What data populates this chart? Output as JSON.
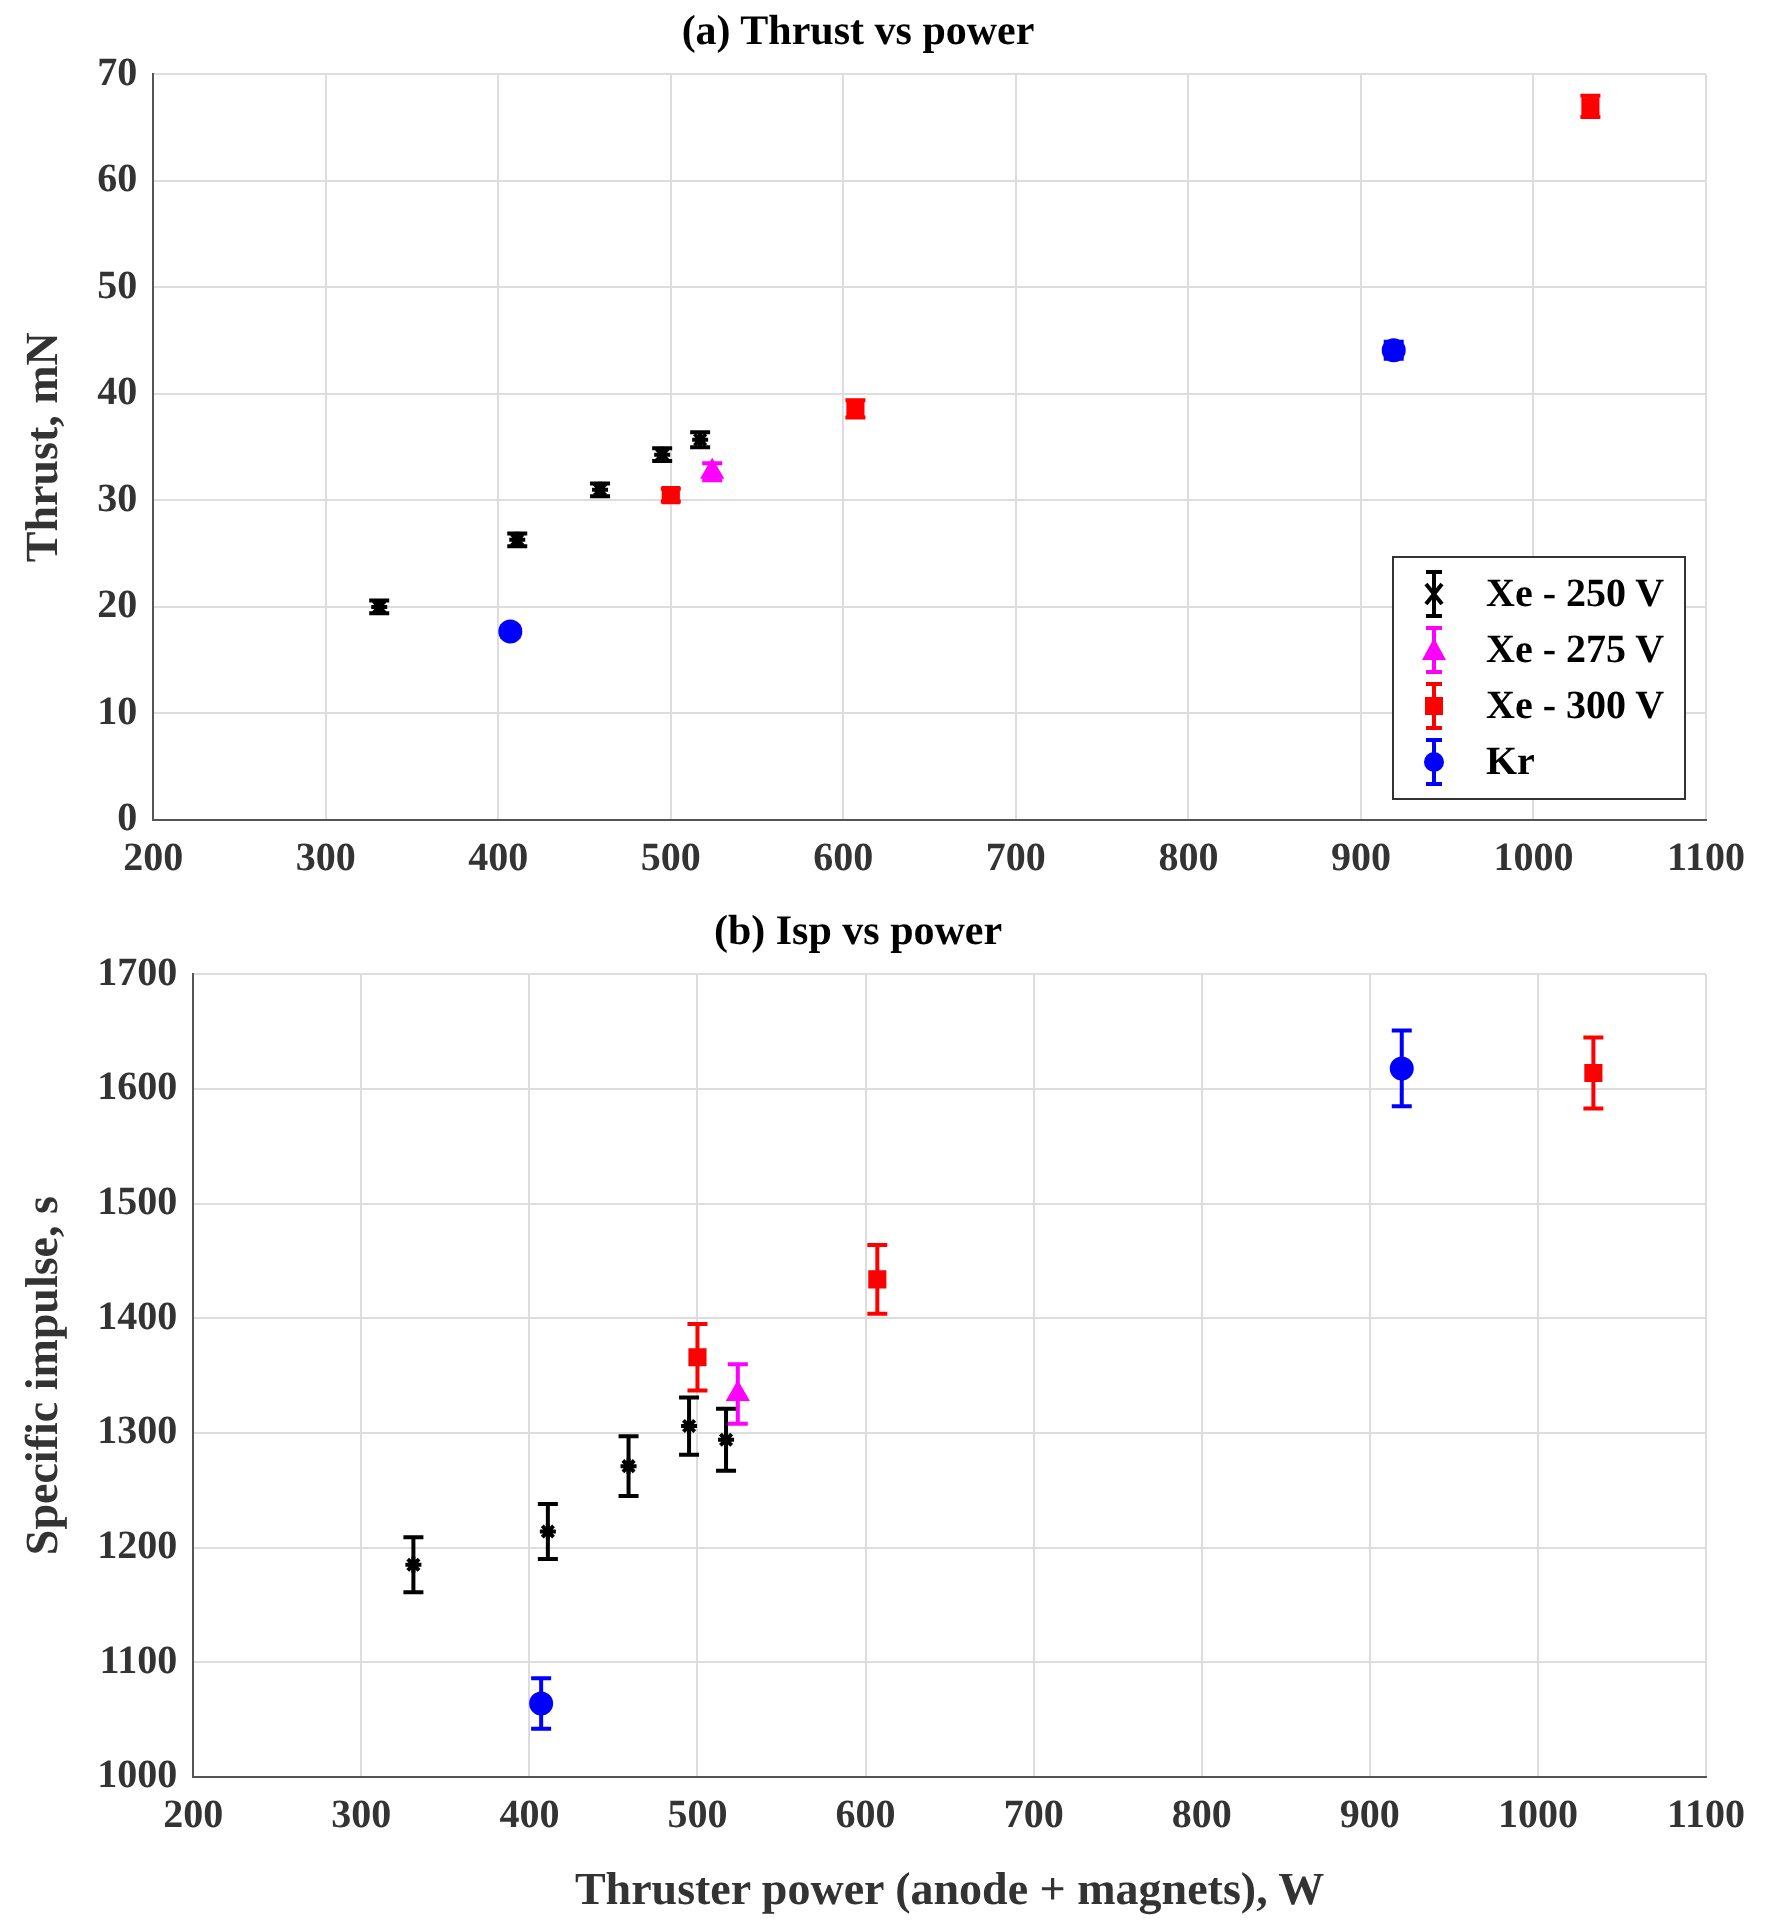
{
  "chart_data": [
    {
      "type": "scatter",
      "title": "(a) Thrust vs power",
      "ylabel": "Thrust, mN",
      "xlim": [
        200,
        1100
      ],
      "xticks": [
        200,
        300,
        400,
        500,
        600,
        700,
        800,
        900,
        1000,
        1100
      ],
      "ylim": [
        0,
        70
      ],
      "yticks": [
        0,
        10,
        20,
        30,
        40,
        50,
        60,
        70
      ],
      "grid": true,
      "legend": "bottom right",
      "series": [
        {
          "name": "Xe - 250 V",
          "color": "#000000",
          "marker": "cross",
          "x": [
            331,
            411,
            459,
            495,
            517
          ],
          "values": [
            20.0,
            26.3,
            31.0,
            34.3,
            35.7
          ],
          "errors": [
            0.6,
            0.6,
            0.6,
            0.6,
            0.7
          ]
        },
        {
          "name": "Xe - 275 V",
          "color": "#ff00ff",
          "marker": "triangle",
          "x": [
            524
          ],
          "values": [
            32.7
          ],
          "errors": [
            0.8
          ]
        },
        {
          "name": "Xe - 300 V",
          "color": "#ff0000",
          "marker": "square",
          "x": [
            500,
            607,
            1033
          ],
          "values": [
            30.5,
            38.6,
            67.0
          ],
          "errors": [
            0.6,
            0.8,
            1.0
          ]
        },
        {
          "name": "Kr",
          "color": "#0000ff",
          "marker": "circle",
          "x": [
            407,
            919
          ],
          "values": [
            17.7,
            44.1
          ],
          "errors": [
            0.5,
            0.8
          ]
        }
      ]
    },
    {
      "type": "scatter",
      "title": "(b) Isp vs power",
      "xlabel": "Thruster power (anode + magnets), W",
      "ylabel": "Specific impulse, s",
      "xlim": [
        200,
        1100
      ],
      "xticks": [
        200,
        300,
        400,
        500,
        600,
        700,
        800,
        900,
        1000,
        1100
      ],
      "ylim": [
        1000,
        1700
      ],
      "yticks": [
        1000,
        1100,
        1200,
        1300,
        1400,
        1500,
        1600,
        1700
      ],
      "grid": true,
      "series": [
        {
          "color": "#000000",
          "marker": "cross",
          "x": [
            331,
            411,
            459,
            495,
            517
          ],
          "values": [
            1185,
            1214,
            1271,
            1306,
            1294
          ],
          "errors": [
            24,
            24,
            26,
            25,
            27
          ]
        },
        {
          "color": "#ff00ff",
          "marker": "triangle",
          "x": [
            524
          ],
          "values": [
            1334
          ],
          "errors": [
            26
          ]
        },
        {
          "color": "#ff0000",
          "marker": "square",
          "x": [
            500,
            607,
            1033
          ],
          "values": [
            1366,
            1434,
            1614
          ],
          "errors": [
            29,
            30,
            31
          ]
        },
        {
          "color": "#0000ff",
          "marker": "circle",
          "x": [
            407,
            919
          ],
          "values": [
            1064,
            1618
          ],
          "errors": [
            22,
            33
          ]
        }
      ]
    }
  ]
}
